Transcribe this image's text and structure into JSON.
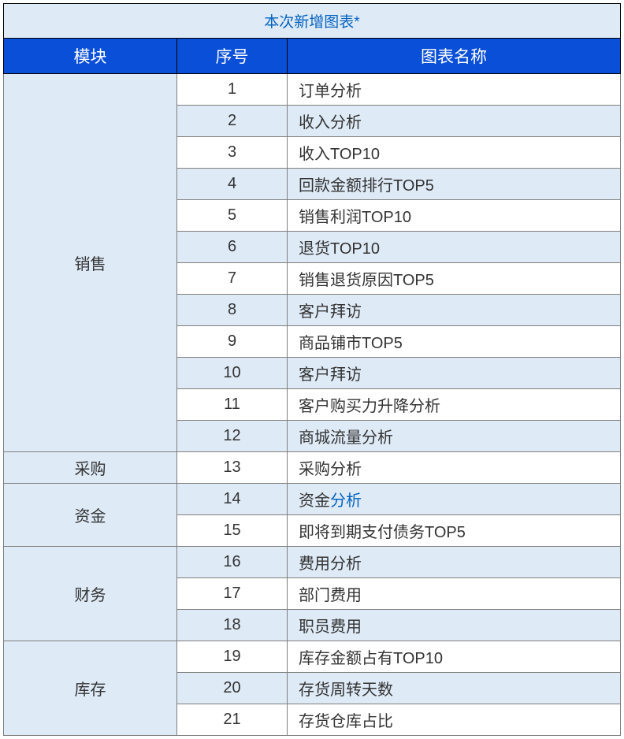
{
  "title": "本次新增图表*",
  "headers": {
    "module": "模块",
    "index": "序号",
    "name": "图表名称"
  },
  "colors": {
    "title_bg": "#deeaf6",
    "title_color": "#0563c1",
    "header_bg": "#0a4fd8",
    "header_color": "#ffffff",
    "band_bg": "#deeaf6",
    "border": "#7f7f7f",
    "outer_border": "#000000",
    "bottom_accent": "#1d3d1d",
    "link_blue": "#0563c1"
  },
  "row14_name_parts": {
    "black": "资金",
    "blue": "分析"
  },
  "modules": [
    {
      "label": "销售",
      "rows": [
        {
          "idx": "1",
          "name": "订单分析",
          "band": false
        },
        {
          "idx": "2",
          "name": "收入分析",
          "band": true
        },
        {
          "idx": "3",
          "name": "收入TOP10",
          "band": false
        },
        {
          "idx": "4",
          "name": "回款金额排行TOP5",
          "band": true
        },
        {
          "idx": "5",
          "name": "销售利润TOP10",
          "band": false
        },
        {
          "idx": "6",
          "name": "退货TOP10",
          "band": true
        },
        {
          "idx": "7",
          "name": "销售退货原因TOP5",
          "band": false
        },
        {
          "idx": "8",
          "name": "客户拜访",
          "band": true
        },
        {
          "idx": "9",
          "name": "商品铺市TOP5",
          "band": false
        },
        {
          "idx": "10",
          "name": "客户拜访",
          "band": true
        },
        {
          "idx": "11",
          "name": "客户购买力升降分析",
          "band": false
        },
        {
          "idx": "12",
          "name": "商城流量分析",
          "band": true
        }
      ]
    },
    {
      "label": "采购",
      "rows": [
        {
          "idx": "13",
          "name": "采购分析",
          "band": false
        }
      ]
    },
    {
      "label": "资金",
      "rows": [
        {
          "idx": "14",
          "name": "资金分析",
          "band": true,
          "mixed": true
        },
        {
          "idx": "15",
          "name": "即将到期支付债务TOP5",
          "band": false
        }
      ]
    },
    {
      "label": "财务",
      "rows": [
        {
          "idx": "16",
          "name": "费用分析",
          "band": true
        },
        {
          "idx": "17",
          "name": "部门费用",
          "band": false
        },
        {
          "idx": "18",
          "name": "职员费用",
          "band": true
        }
      ]
    },
    {
      "label": "库存",
      "rows": [
        {
          "idx": "19",
          "name": "库存金额占有TOP10",
          "band": false
        },
        {
          "idx": "20",
          "name": "存货周转天数",
          "band": true
        },
        {
          "idx": "21",
          "name": "存货仓库占比",
          "band": false
        }
      ]
    }
  ]
}
